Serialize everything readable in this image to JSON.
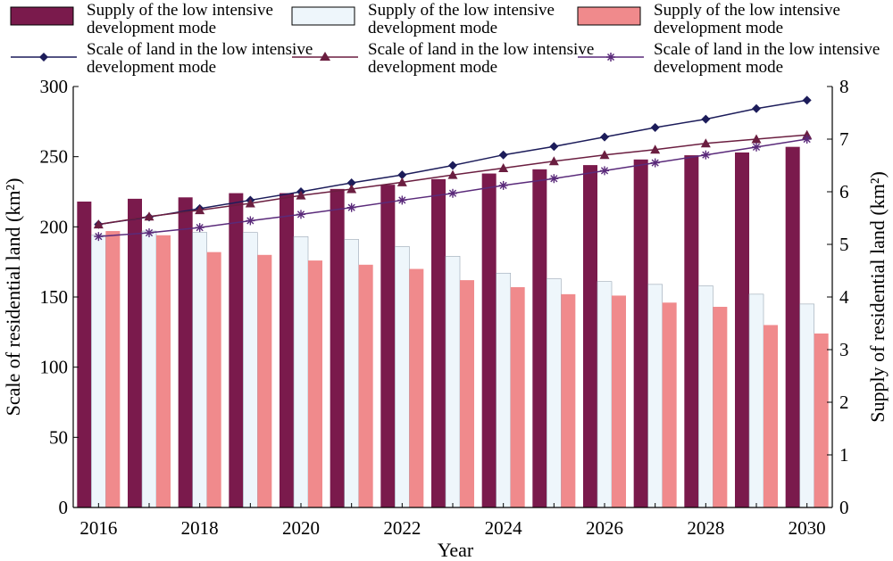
{
  "legend": {
    "bar1": "Supply of the low intensive development mode",
    "bar2": "Supply of the low intensive development mode",
    "bar3": "Supply of the low intensive development mode",
    "line1": "Scale of land in the low intensive development mode",
    "line2": "Scale of land in the low intensive development mode",
    "line3": "Scale of land in the low intensive development mode"
  },
  "chart_data": {
    "type": "bar+line",
    "xlabel": "Year",
    "ylabel_left": "Scale of residential land (km²)",
    "ylabel_right": "Supply of residential land (km²)",
    "x_ticks": [
      "2016",
      "2018",
      "2020",
      "2022",
      "2024",
      "2026",
      "2028",
      "2030"
    ],
    "categories": [
      "2016",
      "2017",
      "2018",
      "2019",
      "2020",
      "2021",
      "2022",
      "2023",
      "2024",
      "2025",
      "2026",
      "2027",
      "2028",
      "2029",
      "2030"
    ],
    "left_axis": {
      "min": 0,
      "max": 300,
      "ticks": [
        0,
        50,
        100,
        150,
        200,
        250,
        300
      ]
    },
    "right_axis": {
      "min": 0,
      "max": 8,
      "ticks": [
        0,
        1,
        2,
        3,
        4,
        5,
        6,
        7,
        8
      ]
    },
    "bar_series": [
      {
        "name": "Supply of the low intensive development mode",
        "color": "#7a1a4c",
        "axis": "left",
        "values": [
          218,
          220,
          221,
          224,
          224,
          227,
          230,
          234,
          238,
          241,
          244,
          248,
          251,
          253,
          257
        ]
      },
      {
        "name": "Supply of the low intensive development mode",
        "color": "#eef6fb",
        "axis": "left",
        "values": [
          194,
          197,
          196,
          196,
          193,
          191,
          186,
          179,
          167,
          163,
          161,
          159,
          158,
          152,
          145
        ]
      },
      {
        "name": "Supply of the low intensive development mode",
        "color": "#f08a8c",
        "axis": "left",
        "values": [
          197,
          194,
          182,
          180,
          176,
          173,
          170,
          162,
          157,
          152,
          151,
          146,
          143,
          130,
          124
        ]
      }
    ],
    "line_series": [
      {
        "name": "Scale of land in the low intensive development mode",
        "color": "#1c1c5a",
        "marker": "diamond",
        "axis": "right",
        "values": [
          5.38,
          5.52,
          5.68,
          5.84,
          6.0,
          6.17,
          6.32,
          6.5,
          6.7,
          6.86,
          7.04,
          7.22,
          7.38,
          7.58,
          7.74
        ]
      },
      {
        "name": "Scale of land in the low intensive development mode",
        "color": "#6b1e40",
        "marker": "triangle",
        "axis": "right",
        "values": [
          5.38,
          5.53,
          5.65,
          5.78,
          5.93,
          6.05,
          6.18,
          6.32,
          6.45,
          6.58,
          6.7,
          6.8,
          6.92,
          7.0,
          7.08
        ]
      },
      {
        "name": "Scale of land in the low intensive development mode",
        "color": "#5a2a7a",
        "marker": "asterisk",
        "axis": "right",
        "values": [
          5.15,
          5.22,
          5.32,
          5.45,
          5.57,
          5.7,
          5.84,
          5.97,
          6.12,
          6.25,
          6.4,
          6.55,
          6.7,
          6.85,
          7.0
        ]
      }
    ]
  }
}
